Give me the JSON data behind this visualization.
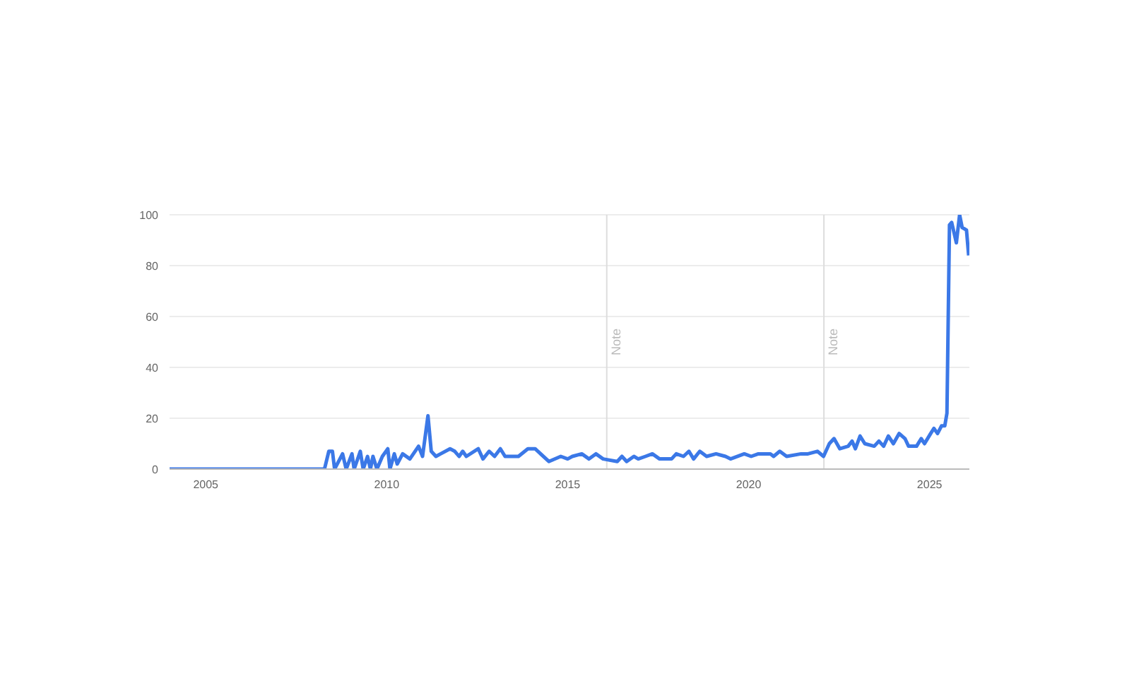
{
  "chart_data": {
    "type": "line",
    "xlim": [
      2004,
      2026.1
    ],
    "xticks": [
      2005,
      2010,
      2015,
      2020,
      2025
    ],
    "ylim": [
      0,
      100
    ],
    "yticks": [
      0,
      20,
      40,
      60,
      80,
      100
    ],
    "grid": "y",
    "ref_lines": [
      {
        "axis": "x",
        "value": 2016.08,
        "label": "Note",
        "color": "#dddddd"
      },
      {
        "axis": "x",
        "value": 2022.08,
        "label": "Note",
        "color": "#dddddd"
      }
    ],
    "series": [
      {
        "color": "#3b78e7",
        "x": [
          2004.0,
          2008.28,
          2008.4,
          2008.5,
          2008.56,
          2008.78,
          2008.88,
          2009.04,
          2009.1,
          2009.27,
          2009.35,
          2009.47,
          2009.55,
          2009.62,
          2009.73,
          2009.88,
          2010.03,
          2010.09,
          2010.21,
          2010.29,
          2010.44,
          2010.64,
          2010.88,
          2010.99,
          2011.14,
          2011.23,
          2011.36,
          2011.49,
          2011.75,
          2011.88,
          2012.0,
          2012.1,
          2012.2,
          2012.53,
          2012.66,
          2012.83,
          2012.98,
          2013.14,
          2013.27,
          2013.64,
          2013.9,
          2014.1,
          2014.48,
          2014.81,
          2015.0,
          2015.13,
          2015.39,
          2015.59,
          2015.78,
          2015.98,
          2016.37,
          2016.5,
          2016.63,
          2016.83,
          2016.95,
          2017.15,
          2017.34,
          2017.54,
          2017.87,
          2018.0,
          2018.2,
          2018.35,
          2018.48,
          2018.65,
          2018.84,
          2019.1,
          2019.36,
          2019.5,
          2019.88,
          2020.07,
          2020.27,
          2020.6,
          2020.69,
          2020.86,
          2021.05,
          2021.45,
          2021.64,
          2021.9,
          2022.07,
          2022.23,
          2022.36,
          2022.52,
          2022.75,
          2022.86,
          2022.95,
          2023.08,
          2023.21,
          2023.47,
          2023.6,
          2023.73,
          2023.86,
          2024.0,
          2024.16,
          2024.32,
          2024.42,
          2024.64,
          2024.77,
          2024.86,
          2025.03,
          2025.12,
          2025.22,
          2025.33,
          2025.42,
          2025.48,
          2025.55,
          2025.61,
          2025.74,
          2025.83,
          2025.9,
          2026.02,
          2026.08
        ],
        "values": [
          0,
          0,
          7,
          7,
          0,
          6,
          0,
          6,
          0,
          7,
          0,
          5,
          0,
          5,
          0,
          5,
          8,
          0,
          6,
          2,
          6,
          4,
          9,
          5,
          21,
          7,
          5,
          6,
          8,
          7,
          5,
          7,
          5,
          8,
          4,
          7,
          5,
          8,
          5,
          5,
          8,
          8,
          3,
          5,
          4,
          5,
          6,
          4,
          6,
          4,
          3,
          5,
          3,
          5,
          4,
          5,
          6,
          4,
          4,
          6,
          5,
          7,
          4,
          7,
          5,
          6,
          5,
          4,
          6,
          5,
          6,
          6,
          5,
          7,
          5,
          6,
          6,
          7,
          5,
          10,
          12,
          8,
          9,
          11,
          8,
          13,
          10,
          9,
          11,
          9,
          13,
          10,
          14,
          12,
          9,
          9,
          12,
          10,
          14,
          16,
          14,
          17,
          17,
          22,
          96,
          97,
          89,
          100,
          95,
          94,
          84
        ]
      }
    ]
  }
}
